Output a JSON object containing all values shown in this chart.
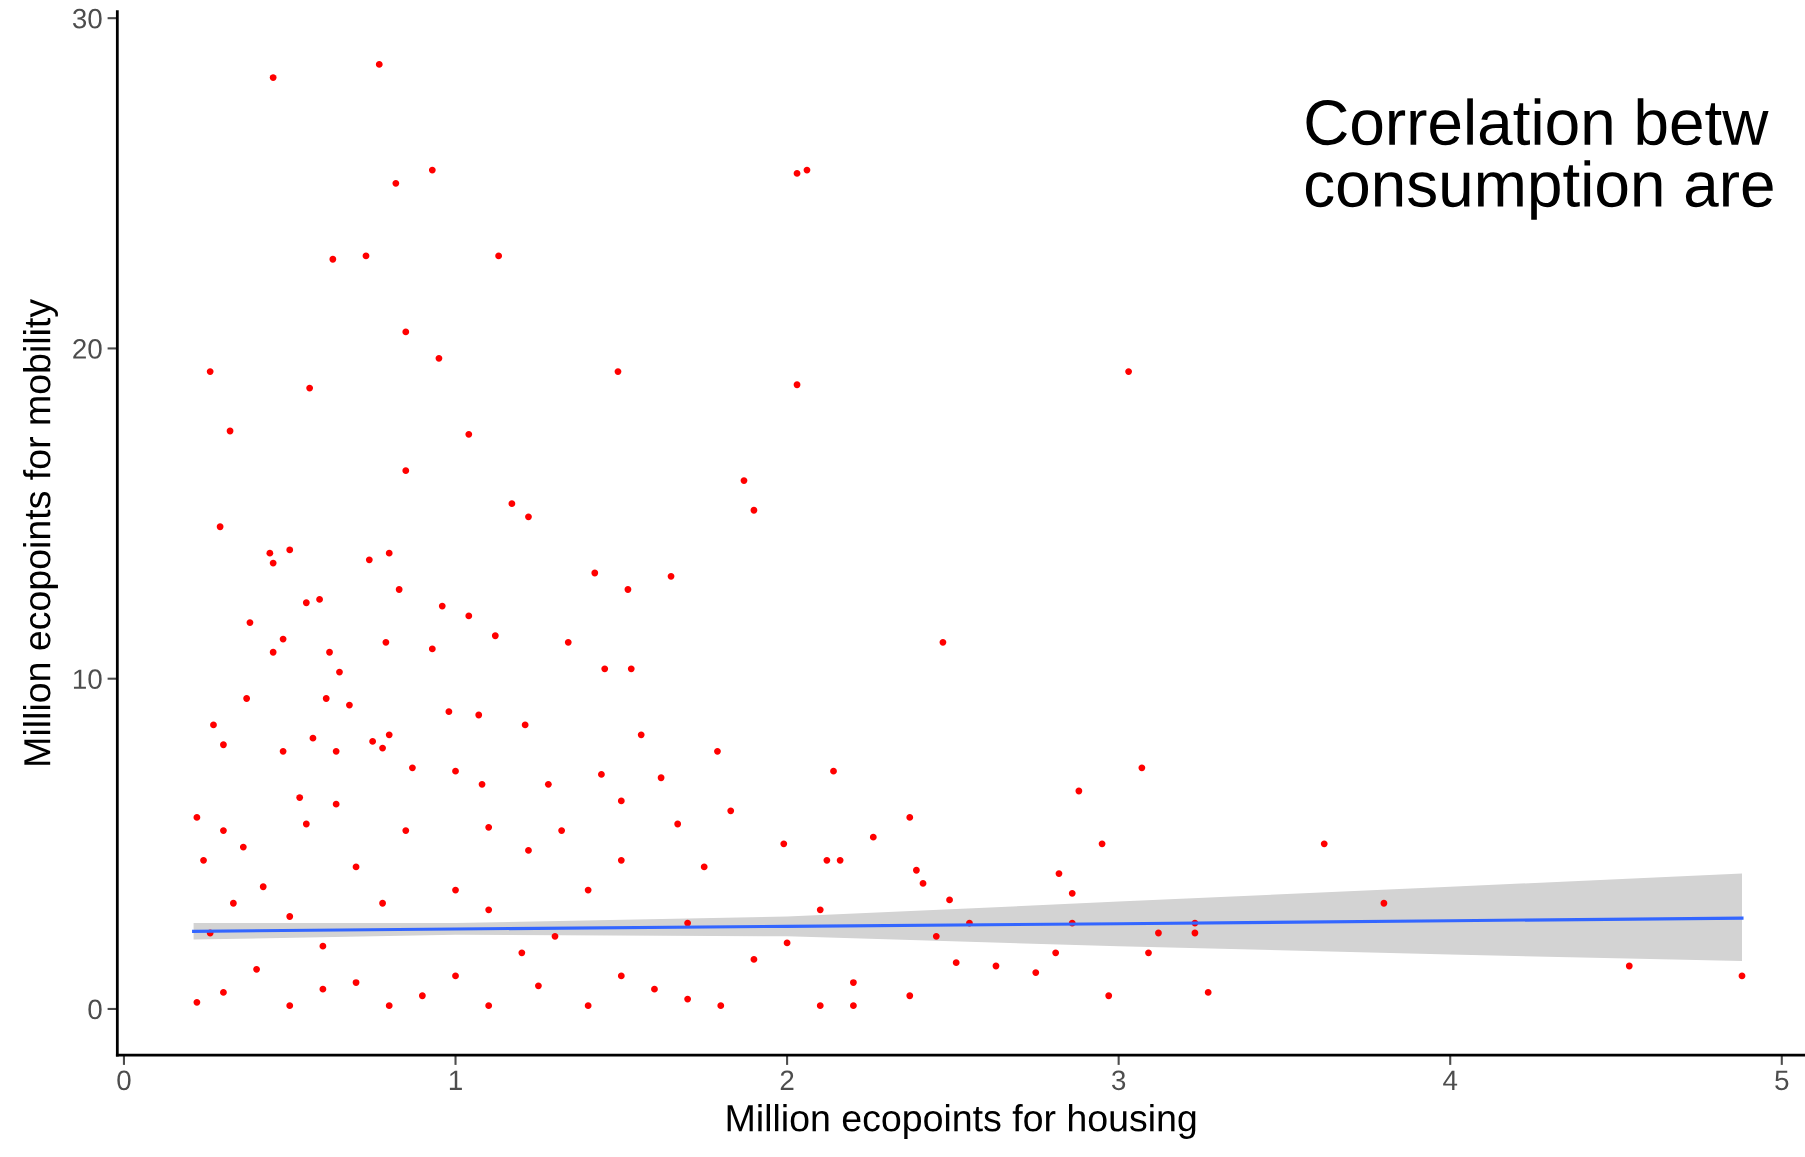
{
  "chart_data": {
    "type": "scatter",
    "xlabel": "Million ecopoints for housing",
    "ylabel": "Million ecopoints for mobility",
    "annotations": [
      "Correlation betw\nconsumption are"
    ],
    "xlim": [
      -0.02,
      5.07
    ],
    "ylim": [
      -1.4,
      30.2
    ],
    "xticks": [
      0,
      1,
      2,
      3,
      4,
      5
    ],
    "yticks": [
      0,
      10,
      20,
      30
    ],
    "grid": false,
    "legend": false,
    "marker": "circle",
    "series": [
      {
        "color": "#ff0000",
        "x": [
          0.45,
          0.77,
          0.82,
          0.93,
          0.63,
          0.73,
          1.13,
          2.03,
          2.06,
          0.85,
          0.95,
          0.26,
          0.56,
          1.49,
          2.03,
          3.03,
          0.32,
          1.04,
          0.85,
          1.87,
          1.9,
          1.17,
          1.22,
          0.29,
          0.44,
          0.5,
          0.45,
          0.8,
          0.74,
          1.42,
          1.65,
          0.83,
          1.52,
          0.55,
          0.59,
          0.96,
          1.04,
          0.38,
          1.12,
          0.48,
          0.79,
          1.34,
          2.47,
          0.45,
          0.62,
          0.93,
          0.65,
          1.45,
          1.53,
          0.37,
          0.61,
          0.68,
          0.98,
          1.07,
          0.27,
          1.21,
          0.8,
          1.56,
          0.3,
          0.57,
          0.75,
          0.78,
          0.64,
          1.79,
          0.48,
          0.87,
          1.0,
          1.44,
          2.14,
          3.07,
          1.62,
          1.08,
          0.53,
          1.28,
          2.88,
          0.64,
          1.5,
          1.83,
          0.22,
          0.55,
          1.1,
          1.67,
          2.37,
          0.3,
          1.32,
          0.85,
          1.99,
          2.26,
          2.95,
          3.62,
          0.36,
          1.22,
          0.24,
          1.5,
          2.12,
          2.16,
          0.7,
          1.75,
          2.39,
          2.82,
          0.42,
          1.0,
          1.4,
          2.41,
          2.86,
          3.8,
          0.33,
          0.78,
          1.1,
          2.49,
          2.1,
          0.5,
          1.7,
          2.55,
          2.86,
          3.23,
          0.26,
          1.3,
          3.12,
          3.23,
          2.0,
          2.45,
          0.6,
          1.2,
          2.81,
          3.09,
          1.9,
          2.51,
          2.63,
          2.75,
          4.54,
          4.88,
          0.4,
          1.0,
          1.5,
          0.7,
          1.25,
          2.2,
          3.27,
          2.97,
          2.37,
          0.3,
          0.9,
          1.7,
          0.22,
          0.5,
          0.8,
          1.1,
          1.4,
          1.8,
          2.1,
          2.2,
          0.6,
          1.6
        ],
        "values": [
          28.2,
          28.6,
          25.0,
          25.4,
          22.7,
          22.8,
          22.8,
          25.3,
          25.4,
          20.5,
          19.7,
          19.3,
          18.8,
          19.3,
          18.9,
          19.3,
          17.5,
          17.4,
          16.3,
          16.0,
          15.1,
          15.3,
          14.9,
          14.6,
          13.8,
          13.9,
          13.5,
          13.8,
          13.6,
          13.2,
          13.1,
          12.7,
          12.7,
          12.3,
          12.4,
          12.2,
          11.9,
          11.7,
          11.3,
          11.2,
          11.1,
          11.1,
          11.1,
          10.8,
          10.8,
          10.9,
          10.2,
          10.3,
          10.3,
          9.4,
          9.4,
          9.2,
          9.0,
          8.9,
          8.6,
          8.6,
          8.3,
          8.3,
          8.0,
          8.2,
          8.1,
          7.9,
          7.8,
          7.8,
          7.8,
          7.3,
          7.2,
          7.1,
          7.2,
          7.3,
          7.0,
          6.8,
          6.4,
          6.8,
          6.6,
          6.2,
          6.3,
          6.0,
          5.8,
          5.6,
          5.5,
          5.6,
          5.8,
          5.4,
          5.4,
          5.4,
          5.0,
          5.2,
          5.0,
          5.0,
          4.9,
          4.8,
          4.5,
          4.5,
          4.5,
          4.5,
          4.3,
          4.3,
          4.2,
          4.1,
          3.7,
          3.6,
          3.6,
          3.8,
          3.5,
          3.2,
          3.2,
          3.2,
          3.0,
          3.3,
          3.0,
          2.8,
          2.6,
          2.6,
          2.6,
          2.6,
          2.3,
          2.2,
          2.3,
          2.3,
          2.0,
          2.2,
          1.9,
          1.7,
          1.7,
          1.7,
          1.5,
          1.4,
          1.3,
          1.1,
          1.3,
          1.0,
          1.2,
          1.0,
          1.0,
          0.8,
          0.7,
          0.8,
          0.5,
          0.4,
          0.4,
          0.5,
          0.4,
          0.3,
          0.2,
          0.1,
          0.1,
          0.1,
          0.1,
          0.1,
          0.1,
          0.1,
          0.6,
          0.6
        ]
      },
      {
        "type": "line",
        "color": "#3366ff",
        "line_style": "solid",
        "marker": "none",
        "x": [
          0.21,
          1,
          2,
          3,
          4,
          4.88
        ],
        "values": [
          2.35,
          2.42,
          2.5,
          2.58,
          2.67,
          2.75
        ],
        "lower": [
          2.1,
          2.25,
          2.2,
          1.9,
          1.65,
          1.45
        ],
        "upper": [
          2.6,
          2.6,
          2.8,
          3.25,
          3.7,
          4.1
        ]
      }
    ]
  }
}
